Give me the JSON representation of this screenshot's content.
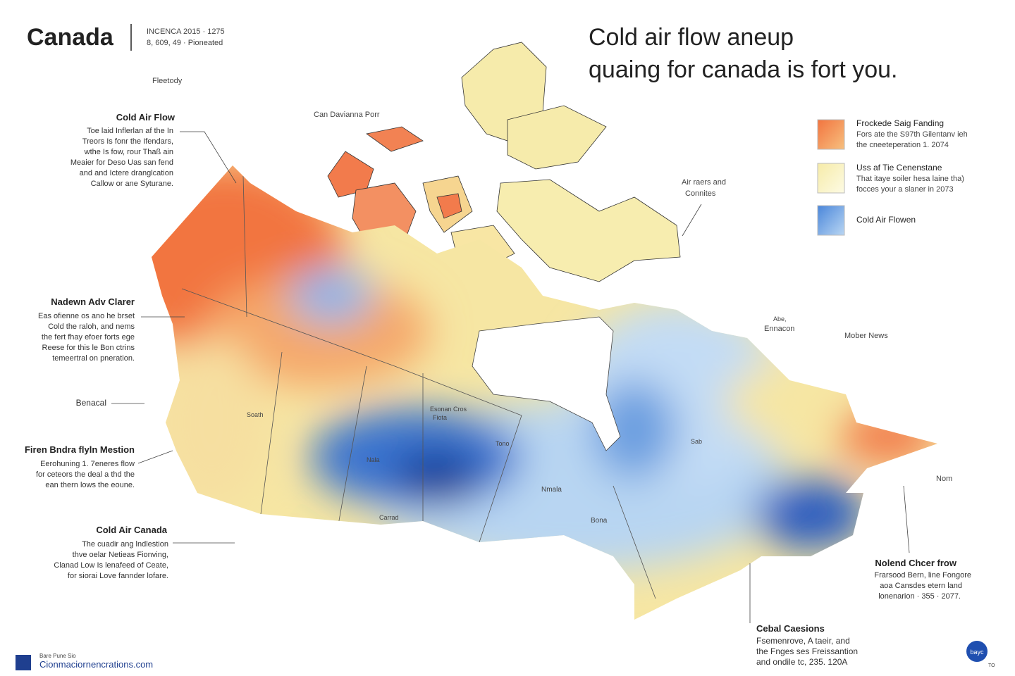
{
  "header": {
    "title": "Canada",
    "meta": [
      "INCENCA 2015 · 1275",
      "8, 609, 49 · Pioneated"
    ]
  },
  "headline": [
    "Cold air flow aneup",
    "quaing for canada is fort you."
  ],
  "legend": [
    {
      "title": "Frockede Saig Fanding",
      "lines": [
        "Fors ate the S97th Gilentanv ieh",
        "the cneeteperation 1. 2074"
      ]
    },
    {
      "title": "Uss af Tie Cenenstane",
      "lines": [
        "That itaye soiler hesa laine tha)",
        "focces your a slaner in 2073"
      ]
    },
    {
      "title": "Cold  Air Flowen",
      "lines": []
    }
  ],
  "map_labels": [
    "Fleetody",
    "Can Davianna Porr",
    "Air raers and",
    "Connites",
    "Abe,",
    "Ennacon",
    "Mober News",
    "Nom",
    "Soath",
    "Esonan Cros",
    "Fiota",
    "Tono",
    "Nala",
    "Nmala",
    "Bona",
    "Carrad",
    "Sab"
  ],
  "annotations": [
    {
      "title": "Cold Air Flow",
      "lines": [
        "Toe laid Inflerlan af the In",
        "Treors Is fonr the Ifendars,",
        "wthe Is fow, rour Thaß ain",
        "Meaier for Deso Uas san fend",
        "and and Ictere dranglcation",
        "Callow or ane Syturane."
      ]
    },
    {
      "title": "Nadewn Adv Clarer",
      "lines": [
        "Eas ofienne os ano he brset",
        "Cold the raloh, and nems",
        "the fert fhay efoer forts ege",
        "Reese for this le Bon ctrins",
        "temeertral on pneration."
      ]
    },
    {
      "title": "Benacal",
      "lines": []
    },
    {
      "title": "Firen Bndra flyln Mestion",
      "lines": [
        "Eerohuning 1. 7eneres flow",
        "for ceteors the deal a thd the",
        "ean thern lows the eoune."
      ]
    },
    {
      "title": "Cold Air Canada",
      "lines": [
        "The cuadir ang lndlestion",
        "thve oelar Netieas Fionving,",
        "Clanad Low  Is lenafeed of Ceate,",
        "for siorai Love fannder lofare."
      ]
    }
  ],
  "notes": [
    {
      "title": "Nolend Chcer frow",
      "lines": [
        "Frarsood Bern, line Fongore",
        "aoa Cansdes etern land",
        "lonenarion · 355 · 2077."
      ]
    },
    {
      "title": "Cebal Caesions",
      "lines": [
        "Fsemenrove, A taeir, and",
        "the Fnges ses Freissantion",
        "and ondile tc, 235. 120A"
      ]
    }
  ],
  "footer": {
    "small": "Bare Pune Sio",
    "site": "Cionmaciornencrations.com",
    "badge": "bayc",
    "corner": "TO"
  }
}
